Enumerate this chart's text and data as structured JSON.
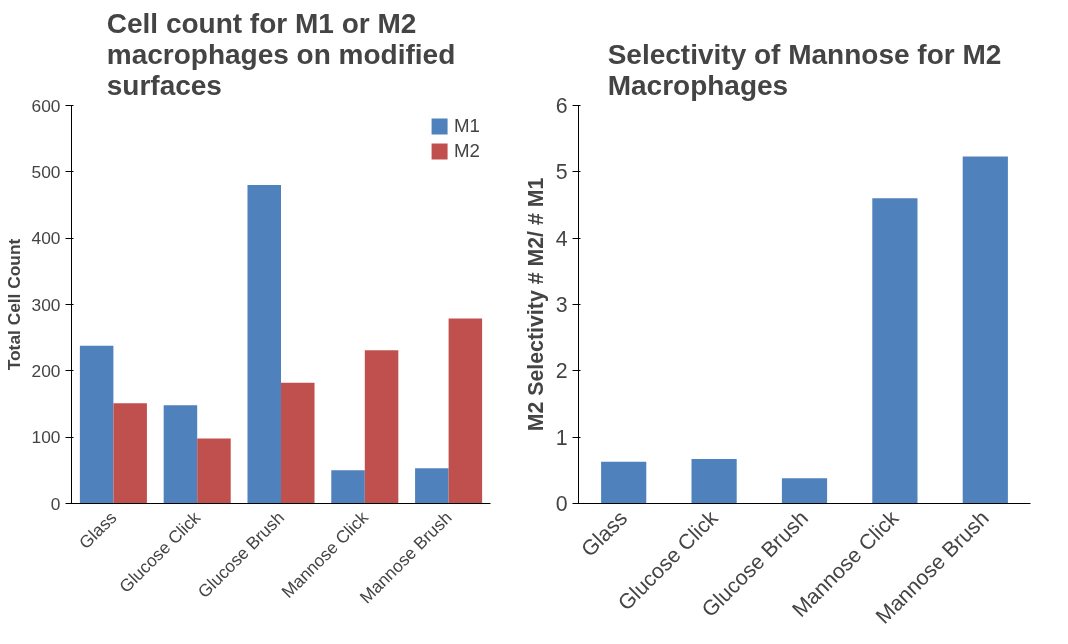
{
  "chart_data": [
    {
      "type": "bar",
      "title": "Cell count for M1 or M2 macrophages on modified surfaces",
      "ylabel": "Total Cell Count",
      "categories": [
        "Glass",
        "Glucose Click",
        "Glucose Brush",
        "Mannose Click",
        "Mannose Brush"
      ],
      "series": [
        {
          "name": "M1",
          "color": "#4f81bd",
          "values": [
            238,
            148,
            480,
            50,
            53
          ]
        },
        {
          "name": "M2",
          "color": "#c0504d",
          "values": [
            151,
            98,
            182,
            231,
            279
          ]
        }
      ],
      "ylim": [
        0,
        600
      ],
      "yticks": [
        0,
        100,
        200,
        300,
        400,
        500,
        600
      ],
      "legend": "top right"
    },
    {
      "type": "bar",
      "title": "Selectivity of Mannose for M2 Macrophages",
      "ylabel": "M2 Selectivity # M2/ # M1",
      "categories": [
        "Glass",
        "Glucose Click",
        "Glucose Brush",
        "Mannose Click",
        "Mannose Brush"
      ],
      "values": [
        0.63,
        0.67,
        0.38,
        4.6,
        5.23
      ],
      "color": "#4f81bd",
      "ylim": [
        0,
        6
      ],
      "yticks": [
        0,
        1,
        2,
        3,
        4,
        5,
        6
      ]
    }
  ]
}
